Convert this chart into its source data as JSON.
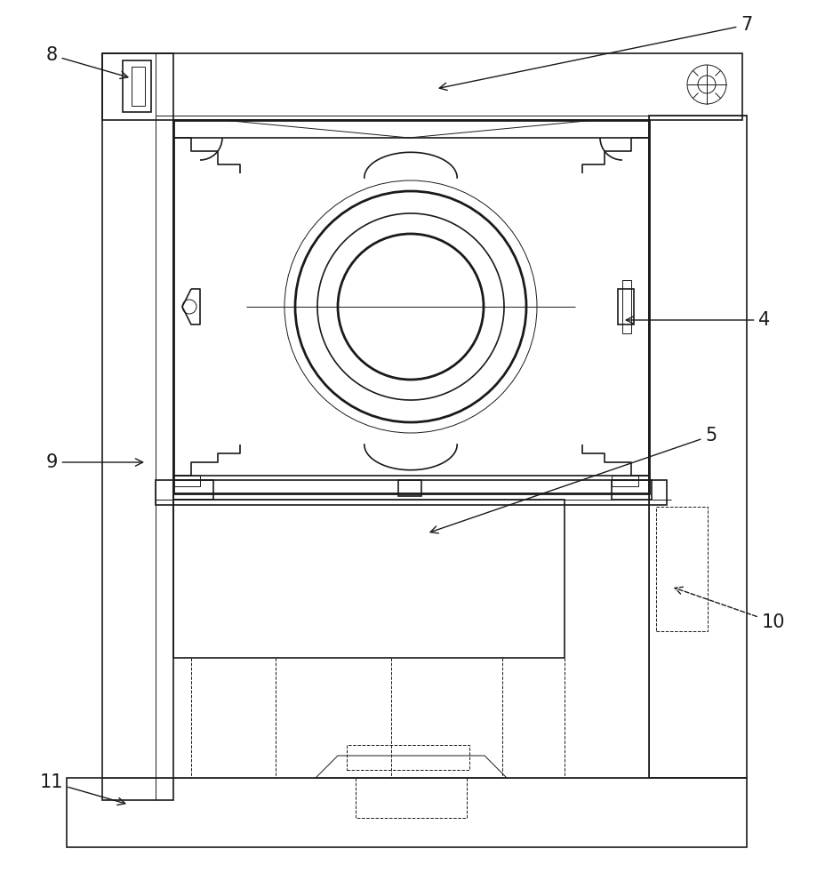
{
  "bg_color": "#ffffff",
  "lc": "#1a1a1a",
  "lw_thin": 0.7,
  "lw_med": 1.2,
  "lw_thick": 2.0,
  "fig_w": 9.19,
  "fig_h": 10.0,
  "dpi": 100
}
